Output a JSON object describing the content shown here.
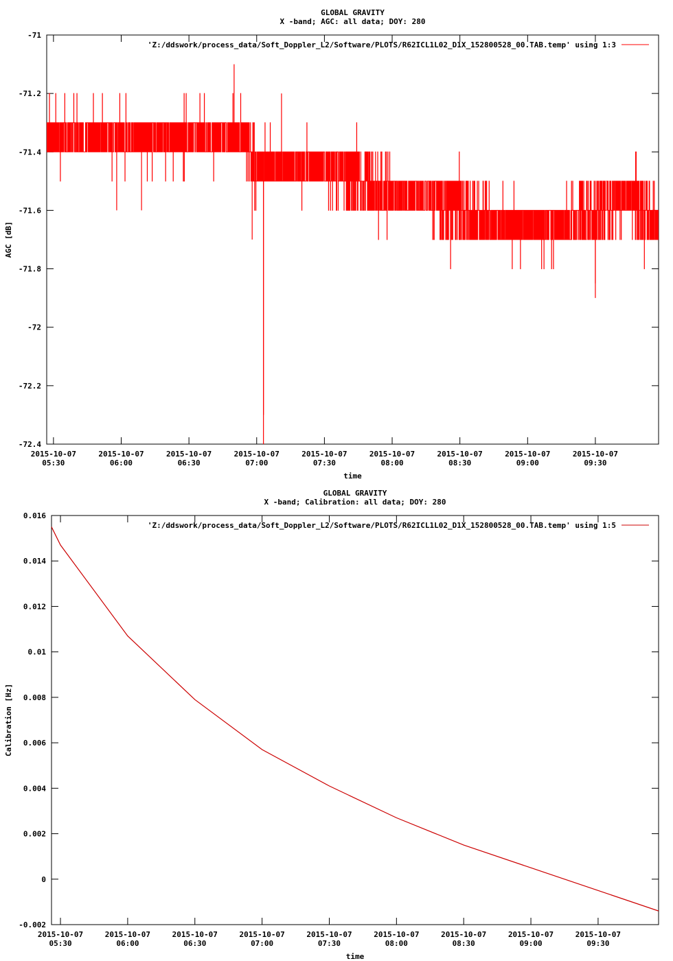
{
  "chart_data": [
    {
      "type": "line",
      "title": "GLOBAL GRAVITY",
      "subtitle": "X -band; AGC: all data; DOY: 280",
      "xlabel": "time",
      "ylabel": "AGC [dB]",
      "legend": "'Z:/ddswork/process_data/Soft_Doppler_L2/Software/PLOTS/R62ICL1L02_D1X_152800528_00.TAB.temp' using 1:3",
      "legend_position": "top-right",
      "grid": false,
      "xlim": [
        "2015-10-07 05:27",
        "2015-10-07 09:58"
      ],
      "ylim": [
        -72.4,
        -71.0
      ],
      "yticks": [
        {
          "value": -71.0,
          "label": "-71"
        },
        {
          "value": -71.2,
          "label": "-71.2"
        },
        {
          "value": -71.4,
          "label": "-71.4"
        },
        {
          "value": -71.6,
          "label": "-71.6"
        },
        {
          "value": -71.8,
          "label": "-71.8"
        },
        {
          "value": -72.0,
          "label": "-72"
        },
        {
          "value": -72.2,
          "label": "-72.2"
        },
        {
          "value": -72.4,
          "label": "-72.4"
        }
      ],
      "xticks": [
        {
          "value": "2015-10-07 05:30",
          "date": "2015-10-07",
          "time": "05:30"
        },
        {
          "value": "2015-10-07 06:00",
          "date": "2015-10-07",
          "time": "06:00"
        },
        {
          "value": "2015-10-07 06:30",
          "date": "2015-10-07",
          "time": "06:30"
        },
        {
          "value": "2015-10-07 07:00",
          "date": "2015-10-07",
          "time": "07:00"
        },
        {
          "value": "2015-10-07 07:30",
          "date": "2015-10-07",
          "time": "07:30"
        },
        {
          "value": "2015-10-07 08:00",
          "date": "2015-10-07",
          "time": "08:00"
        },
        {
          "value": "2015-10-07 08:30",
          "date": "2015-10-07",
          "time": "08:30"
        },
        {
          "value": "2015-10-07 09:00",
          "date": "2015-10-07",
          "time": "09:00"
        },
        {
          "value": "2015-10-07 09:30",
          "date": "2015-10-07",
          "time": "09:30"
        }
      ],
      "series": [
        {
          "color": "#ff0000",
          "style": "noisy-step",
          "x": [
            "2015-10-07 05:27",
            "2015-10-07 05:45",
            "2015-10-07 06:00",
            "2015-10-07 06:15",
            "2015-10-07 06:30",
            "2015-10-07 06:45",
            "2015-10-07 06:55",
            "2015-10-07 07:00",
            "2015-10-07 07:15",
            "2015-10-07 07:30",
            "2015-10-07 07:45",
            "2015-10-07 08:00",
            "2015-10-07 08:15",
            "2015-10-07 08:30",
            "2015-10-07 08:45",
            "2015-10-07 09:00",
            "2015-10-07 09:15",
            "2015-10-07 09:30",
            "2015-10-07 09:45",
            "2015-10-07 09:58"
          ],
          "y": [
            -71.35,
            -71.35,
            -71.35,
            -71.35,
            -71.35,
            -71.35,
            -71.35,
            -71.45,
            -71.45,
            -71.45,
            -71.5,
            -71.55,
            -71.55,
            -71.6,
            -71.65,
            -71.65,
            -71.65,
            -71.6,
            -71.55,
            -71.65
          ],
          "spikes": [
            {
              "x": "2015-10-07 06:50",
              "y": -71.1
            },
            {
              "x": "2015-10-07 07:03",
              "y": -72.4
            },
            {
              "x": "2015-10-07 07:03",
              "y": -72.3
            },
            {
              "x": "2015-10-07 06:58",
              "y": -71.7
            },
            {
              "x": "2015-10-07 07:11",
              "y": -71.2
            },
            {
              "x": "2015-10-07 05:58",
              "y": -71.6
            },
            {
              "x": "2015-10-07 06:09",
              "y": -71.6
            },
            {
              "x": "2015-10-07 09:30",
              "y": -71.9
            },
            {
              "x": "2015-10-07 09:30",
              "y": -71.85
            }
          ]
        }
      ]
    },
    {
      "type": "line",
      "title": "GLOBAL GRAVITY",
      "subtitle": "X -band; Calibration: all data; DOY: 280",
      "xlabel": "time",
      "ylabel": "Calibration [Hz]",
      "legend": "'Z:/ddswork/process_data/Soft_Doppler_L2/Software/PLOTS/R62ICL1L02_D1X_152800528_00.TAB.temp' using 1:5",
      "legend_position": "top-right",
      "grid": false,
      "xlim": [
        "2015-10-07 05:26",
        "2015-10-07 09:57"
      ],
      "ylim": [
        -0.002,
        0.016
      ],
      "yticks": [
        {
          "value": 0.016,
          "label": "0.016"
        },
        {
          "value": 0.014,
          "label": "0.014"
        },
        {
          "value": 0.012,
          "label": "0.012"
        },
        {
          "value": 0.01,
          "label": "0.01"
        },
        {
          "value": 0.008,
          "label": "0.008"
        },
        {
          "value": 0.006,
          "label": "0.006"
        },
        {
          "value": 0.004,
          "label": "0.004"
        },
        {
          "value": 0.002,
          "label": "0.002"
        },
        {
          "value": 0.0,
          "label": "0"
        },
        {
          "value": -0.002,
          "label": "-0.002"
        }
      ],
      "xticks": [
        {
          "value": "2015-10-07 05:30",
          "date": "2015-10-07",
          "time": "05:30"
        },
        {
          "value": "2015-10-07 06:00",
          "date": "2015-10-07",
          "time": "06:00"
        },
        {
          "value": "2015-10-07 06:30",
          "date": "2015-10-07",
          "time": "06:30"
        },
        {
          "value": "2015-10-07 07:00",
          "date": "2015-10-07",
          "time": "07:00"
        },
        {
          "value": "2015-10-07 07:30",
          "date": "2015-10-07",
          "time": "07:30"
        },
        {
          "value": "2015-10-07 08:00",
          "date": "2015-10-07",
          "time": "08:00"
        },
        {
          "value": "2015-10-07 08:30",
          "date": "2015-10-07",
          "time": "08:30"
        },
        {
          "value": "2015-10-07 09:00",
          "date": "2015-10-07",
          "time": "09:00"
        },
        {
          "value": "2015-10-07 09:30",
          "date": "2015-10-07",
          "time": "09:30"
        }
      ],
      "series": [
        {
          "color": "#cc0000",
          "style": "line",
          "x": [
            "2015-10-07 05:26",
            "2015-10-07 05:30",
            "2015-10-07 06:00",
            "2015-10-07 06:30",
            "2015-10-07 07:00",
            "2015-10-07 07:30",
            "2015-10-07 08:00",
            "2015-10-07 08:30",
            "2015-10-07 09:00",
            "2015-10-07 09:30",
            "2015-10-07 09:57"
          ],
          "y": [
            0.0155,
            0.0147,
            0.0107,
            0.0079,
            0.0057,
            0.0041,
            0.0027,
            0.0015,
            0.0005,
            -0.0005,
            -0.0014
          ]
        }
      ]
    }
  ]
}
